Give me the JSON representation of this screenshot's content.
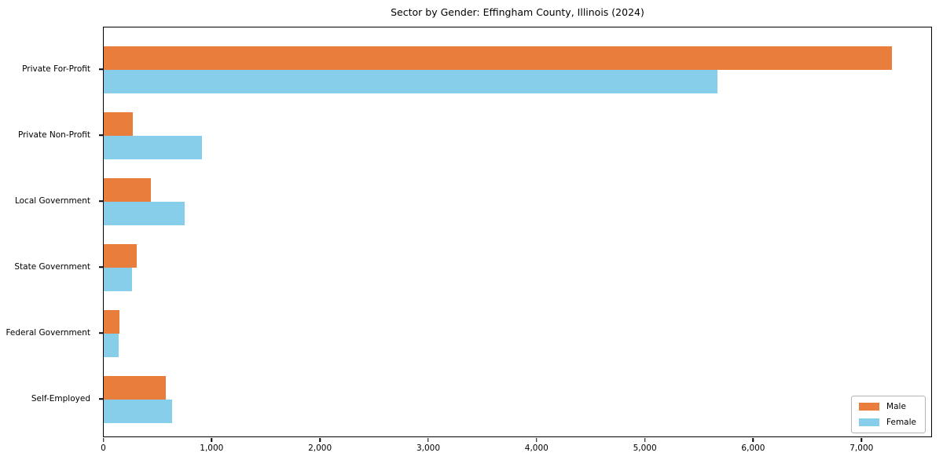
{
  "title": "Sector by Gender: Effingham County, Illinois (2024)",
  "chart_data": {
    "type": "bar",
    "orientation": "horizontal",
    "title": "Sector by Gender: Effingham County, Illinois (2024)",
    "categories": [
      "Private For-Profit",
      "Private Non-Profit",
      "Local Government",
      "State Government",
      "Federal Government",
      "Self-Employed"
    ],
    "series": [
      {
        "name": "Male",
        "color": "#e87d3c",
        "values": [
          7275,
          270,
          435,
          305,
          145,
          570
        ]
      },
      {
        "name": "Female",
        "color": "#87ceeb",
        "values": [
          5665,
          905,
          745,
          260,
          140,
          630
        ]
      }
    ],
    "xlabel": "",
    "ylabel": "",
    "xlim": [
      0,
      7640
    ],
    "x_ticks": [
      0,
      1000,
      2000,
      3000,
      4000,
      5000,
      6000,
      7000
    ],
    "x_tick_labels": [
      "0",
      "1,000",
      "2,000",
      "3,000",
      "4,000",
      "5,000",
      "6,000",
      "7,000"
    ],
    "grid": false,
    "legend": {
      "position": "lower-right",
      "entries": [
        "Male",
        "Female"
      ]
    }
  }
}
